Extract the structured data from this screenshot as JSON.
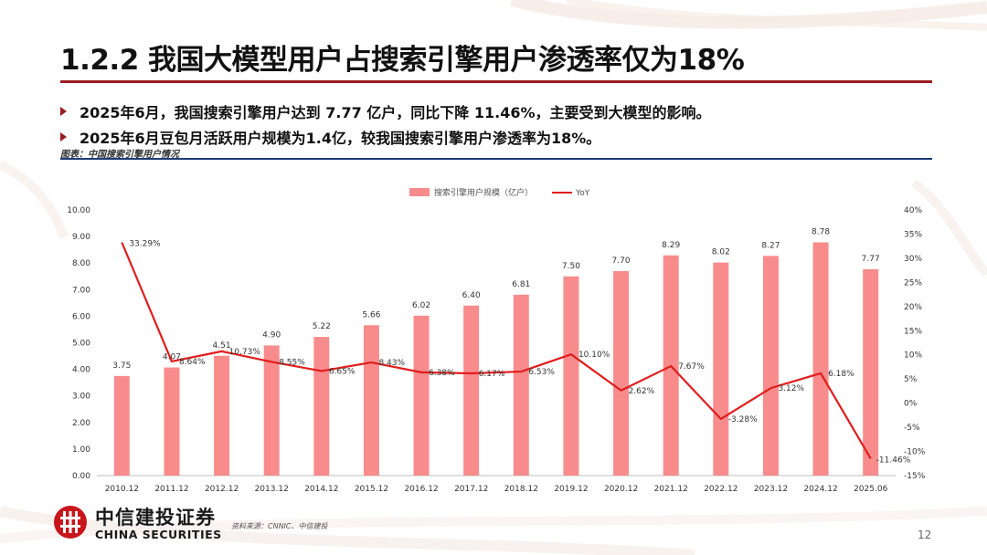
{
  "header": {
    "title": "1.2.2 我国大模型用户占搜索引擎用户渗透率仅为18%",
    "bullets": [
      "2025年6月，我国搜索引擎用户达到 7.77 亿户，同比下降 11.46%，主要受到大模型的影响。",
      "2025年6月豆包月活跃用户规模为1.4亿，较我国搜索引擎用户渗透率为18%。"
    ],
    "caption": "图表：中国搜索引擎用户情况"
  },
  "footer": {
    "logo_cn": "中信建投证券",
    "logo_en": "CHINA SECURITIES",
    "source": "资料来源：CNNIC、中信建投",
    "page_number": "12"
  },
  "colors": {
    "bar": "#f88c8c",
    "line": "#e11d1d",
    "brand": "#9b1c21"
  },
  "chart_data": {
    "type": "bar+line",
    "categories": [
      "2010.12",
      "2011.12",
      "2012.12",
      "2013.12",
      "2014.12",
      "2015.12",
      "2016.12",
      "2017.12",
      "2018.12",
      "2019.12",
      "2020.12",
      "2021.12",
      "2022.12",
      "2023.12",
      "2024.12",
      "2025.06"
    ],
    "series": [
      {
        "name": "搜索引擎用户规模（亿户）",
        "type": "bar",
        "axis": "left",
        "values": [
          3.75,
          4.07,
          4.51,
          4.9,
          5.22,
          5.66,
          6.02,
          6.4,
          6.81,
          7.5,
          7.7,
          8.29,
          8.02,
          8.27,
          8.78,
          7.77
        ],
        "labels": [
          "3.75",
          "4.07",
          "4.51",
          "4.90",
          "5.22",
          "5.66",
          "6.02",
          "6.40",
          "6.81",
          "7.50",
          "7.70",
          "8.29",
          "8.02",
          "8.27",
          "8.78",
          "7.77"
        ]
      },
      {
        "name": "YoY",
        "type": "line",
        "axis": "right",
        "values": [
          33.29,
          8.64,
          10.73,
          8.55,
          6.65,
          8.43,
          6.38,
          6.17,
          6.53,
          10.1,
          2.62,
          7.67,
          -3.28,
          3.12,
          6.18,
          -11.46
        ],
        "labels": [
          "33.29%",
          "8.64%",
          "10.73%",
          "8.55%",
          "6.65%",
          "8.43%",
          "6.38%",
          "6.17%",
          "6.53%",
          "10.10%",
          "2.62%",
          "7.67%",
          "-3.28%",
          "3.12%",
          "6.18%",
          "-11.46%"
        ]
      }
    ],
    "y_left": {
      "min": 0,
      "max": 10,
      "ticks": [
        "0.00",
        "1.00",
        "2.00",
        "3.00",
        "4.00",
        "5.00",
        "6.00",
        "7.00",
        "8.00",
        "9.00",
        "10.00"
      ]
    },
    "y_right": {
      "min": -15,
      "max": 40,
      "ticks": [
        "-15%",
        "-10%",
        "-5%",
        "0%",
        "5%",
        "10%",
        "15%",
        "20%",
        "25%",
        "30%",
        "35%",
        "40%"
      ]
    },
    "grid": false,
    "legend_position": "top-center"
  }
}
